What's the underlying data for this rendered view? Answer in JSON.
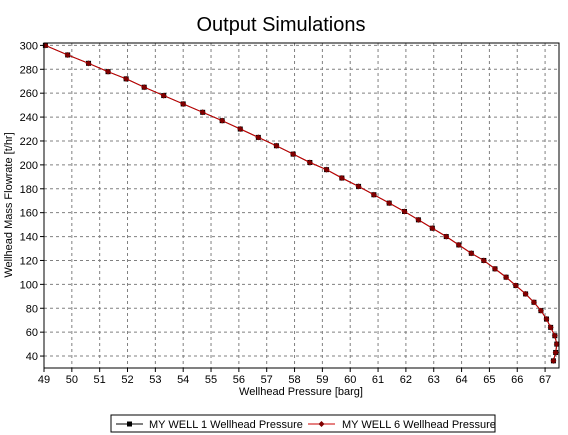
{
  "chart_data": {
    "type": "line",
    "title": "Output Simulations",
    "xlabel": "Wellhead Pressure [barg]",
    "ylabel": "Wellhead Mass Flowrate [t/hr]",
    "xlim": [
      49,
      67.5
    ],
    "ylim": [
      30,
      302
    ],
    "x_ticks": [
      49,
      50,
      51,
      52,
      53,
      54,
      55,
      56,
      57,
      58,
      59,
      60,
      61,
      62,
      63,
      64,
      65,
      66,
      67
    ],
    "y_ticks": [
      40,
      60,
      80,
      100,
      120,
      140,
      160,
      180,
      200,
      220,
      240,
      260,
      280,
      300
    ],
    "grid": true,
    "legend_position": "bottom",
    "colors": {
      "series1": "#000000",
      "series2": "#cc0000",
      "series2_marker": "#800000",
      "grid": "#808080",
      "frame": "#000000"
    },
    "series": [
      {
        "name": "MY WELL 1 Wellhead Pressure",
        "color": "#000000",
        "marker": "square",
        "x": [
          49.05,
          49.85,
          50.6,
          51.3,
          51.95,
          52.6,
          53.3,
          54.0,
          54.7,
          55.4,
          56.05,
          56.7,
          57.35,
          57.95,
          58.55,
          59.15,
          59.7,
          60.3,
          60.85,
          61.4,
          61.95,
          62.45,
          62.95,
          63.45,
          63.9,
          64.35,
          64.8,
          65.2,
          65.6,
          65.95,
          66.3,
          66.6,
          66.85,
          67.05,
          67.2,
          67.35,
          67.42,
          67.38,
          67.3
        ],
        "y": [
          300,
          292,
          285,
          278,
          272,
          265,
          258,
          251,
          244,
          237,
          230,
          223,
          216,
          209,
          202,
          196,
          189,
          182,
          175,
          168,
          161,
          154,
          147,
          140,
          133,
          126,
          120,
          113,
          106,
          99,
          92,
          85,
          78,
          71,
          64,
          57,
          50,
          43,
          36
        ]
      },
      {
        "name": "MY WELL 6 Wellhead Pressure",
        "color": "#cc0000",
        "marker": "diamond",
        "x": [
          49.05,
          49.85,
          50.6,
          51.3,
          51.95,
          52.6,
          53.3,
          54.0,
          54.7,
          55.4,
          56.05,
          56.7,
          57.35,
          57.95,
          58.55,
          59.15,
          59.7,
          60.3,
          60.85,
          61.4,
          61.95,
          62.45,
          62.95,
          63.45,
          63.9,
          64.35,
          64.8,
          65.2,
          65.6,
          65.95,
          66.3,
          66.6,
          66.85,
          67.05,
          67.2,
          67.35,
          67.42,
          67.38,
          67.3
        ],
        "y": [
          300,
          292,
          285,
          278,
          272,
          265,
          258,
          251,
          244,
          237,
          230,
          223,
          216,
          209,
          202,
          196,
          189,
          182,
          175,
          168,
          161,
          154,
          147,
          140,
          133,
          126,
          120,
          113,
          106,
          99,
          92,
          85,
          78,
          71,
          64,
          57,
          50,
          43,
          36
        ]
      }
    ]
  }
}
